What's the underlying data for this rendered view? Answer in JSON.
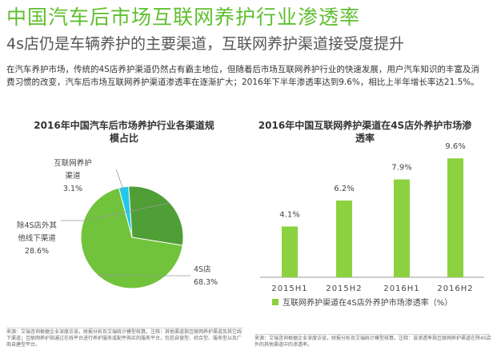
{
  "header": {
    "title": "中国汽车后市场互联网养护行业渗透率",
    "subtitle": "4s店仍是车辆养护的主要渠道，互联网养护渠道接受度提升",
    "intro": "在汽车养护市场，传统的4S店养护渠道仍然占有霸主地位，但随着后市场互联网养护行业的快速发展，用户汽车知识的丰富及消费习惯的改变，汽车后市场互联网养护渠道渗透率在逐渐扩大；2016年下半年渗透率达到9.6%，相比上半年增长率达21.5%。"
  },
  "colors": {
    "green": "#5fbf2f",
    "pie_large": "#70c33a",
    "pie_medium": "#4f9e36",
    "pie_small": "#22c8ec",
    "bar": "#8cd13f"
  },
  "chart_data": [
    {
      "type": "pie",
      "title": "2016年中国汽车后市场养护行业各渠道规模占比",
      "slices": [
        {
          "label": "互联网养护渠道",
          "value": 3.1,
          "value_label": "3.1%"
        },
        {
          "label": "除4S店外其他线下渠道",
          "value": 28.6,
          "value_label": "28.6%"
        },
        {
          "label": "4S店",
          "value": 68.3,
          "value_label": "68.3%"
        }
      ],
      "label_lines": [
        {
          "lines": [
            "互联网养护",
            "渠道",
            "3.1%"
          ]
        },
        {
          "lines": [
            "除4S店外其",
            "他线下渠道",
            "28.6%"
          ]
        },
        {
          "lines": [
            "4S店",
            "68.3%"
          ]
        }
      ]
    },
    {
      "type": "bar",
      "title": "2016年中国互联网养护渠道在4S店外养护市场渗透率",
      "categories": [
        "2015H1",
        "2015H2",
        "2016H1",
        "2016H2"
      ],
      "series": [
        {
          "name": "互联网养护渠道在4S店外养护市场渗透率（%）",
          "values": [
            4.1,
            6.2,
            7.9,
            9.6
          ]
        }
      ],
      "value_labels": [
        "4.1%",
        "6.2%",
        "7.9%",
        "9.6%"
      ],
      "ylim": [
        0,
        10
      ],
      "legend": "bottom"
    }
  ],
  "sources": {
    "left": "来源：艾瑞咨询根据企业深度访谈，财报分析及艾瑞统计模型核算。注释：其他渠道指互联网养护渠道及其它线下渠道；互联网养护指通过在线平台进行养护服务或配件购买的服务平台，包括自营型、综合型、服务型以及厂商自建型平台。",
    "right": "来源：艾瑞咨询根据企业深度访谈，财报分析及艾瑞统计模型核算。注释：该渗透率指互联网养护渠道在除4S店外的其他渠道中的渗透率。"
  }
}
